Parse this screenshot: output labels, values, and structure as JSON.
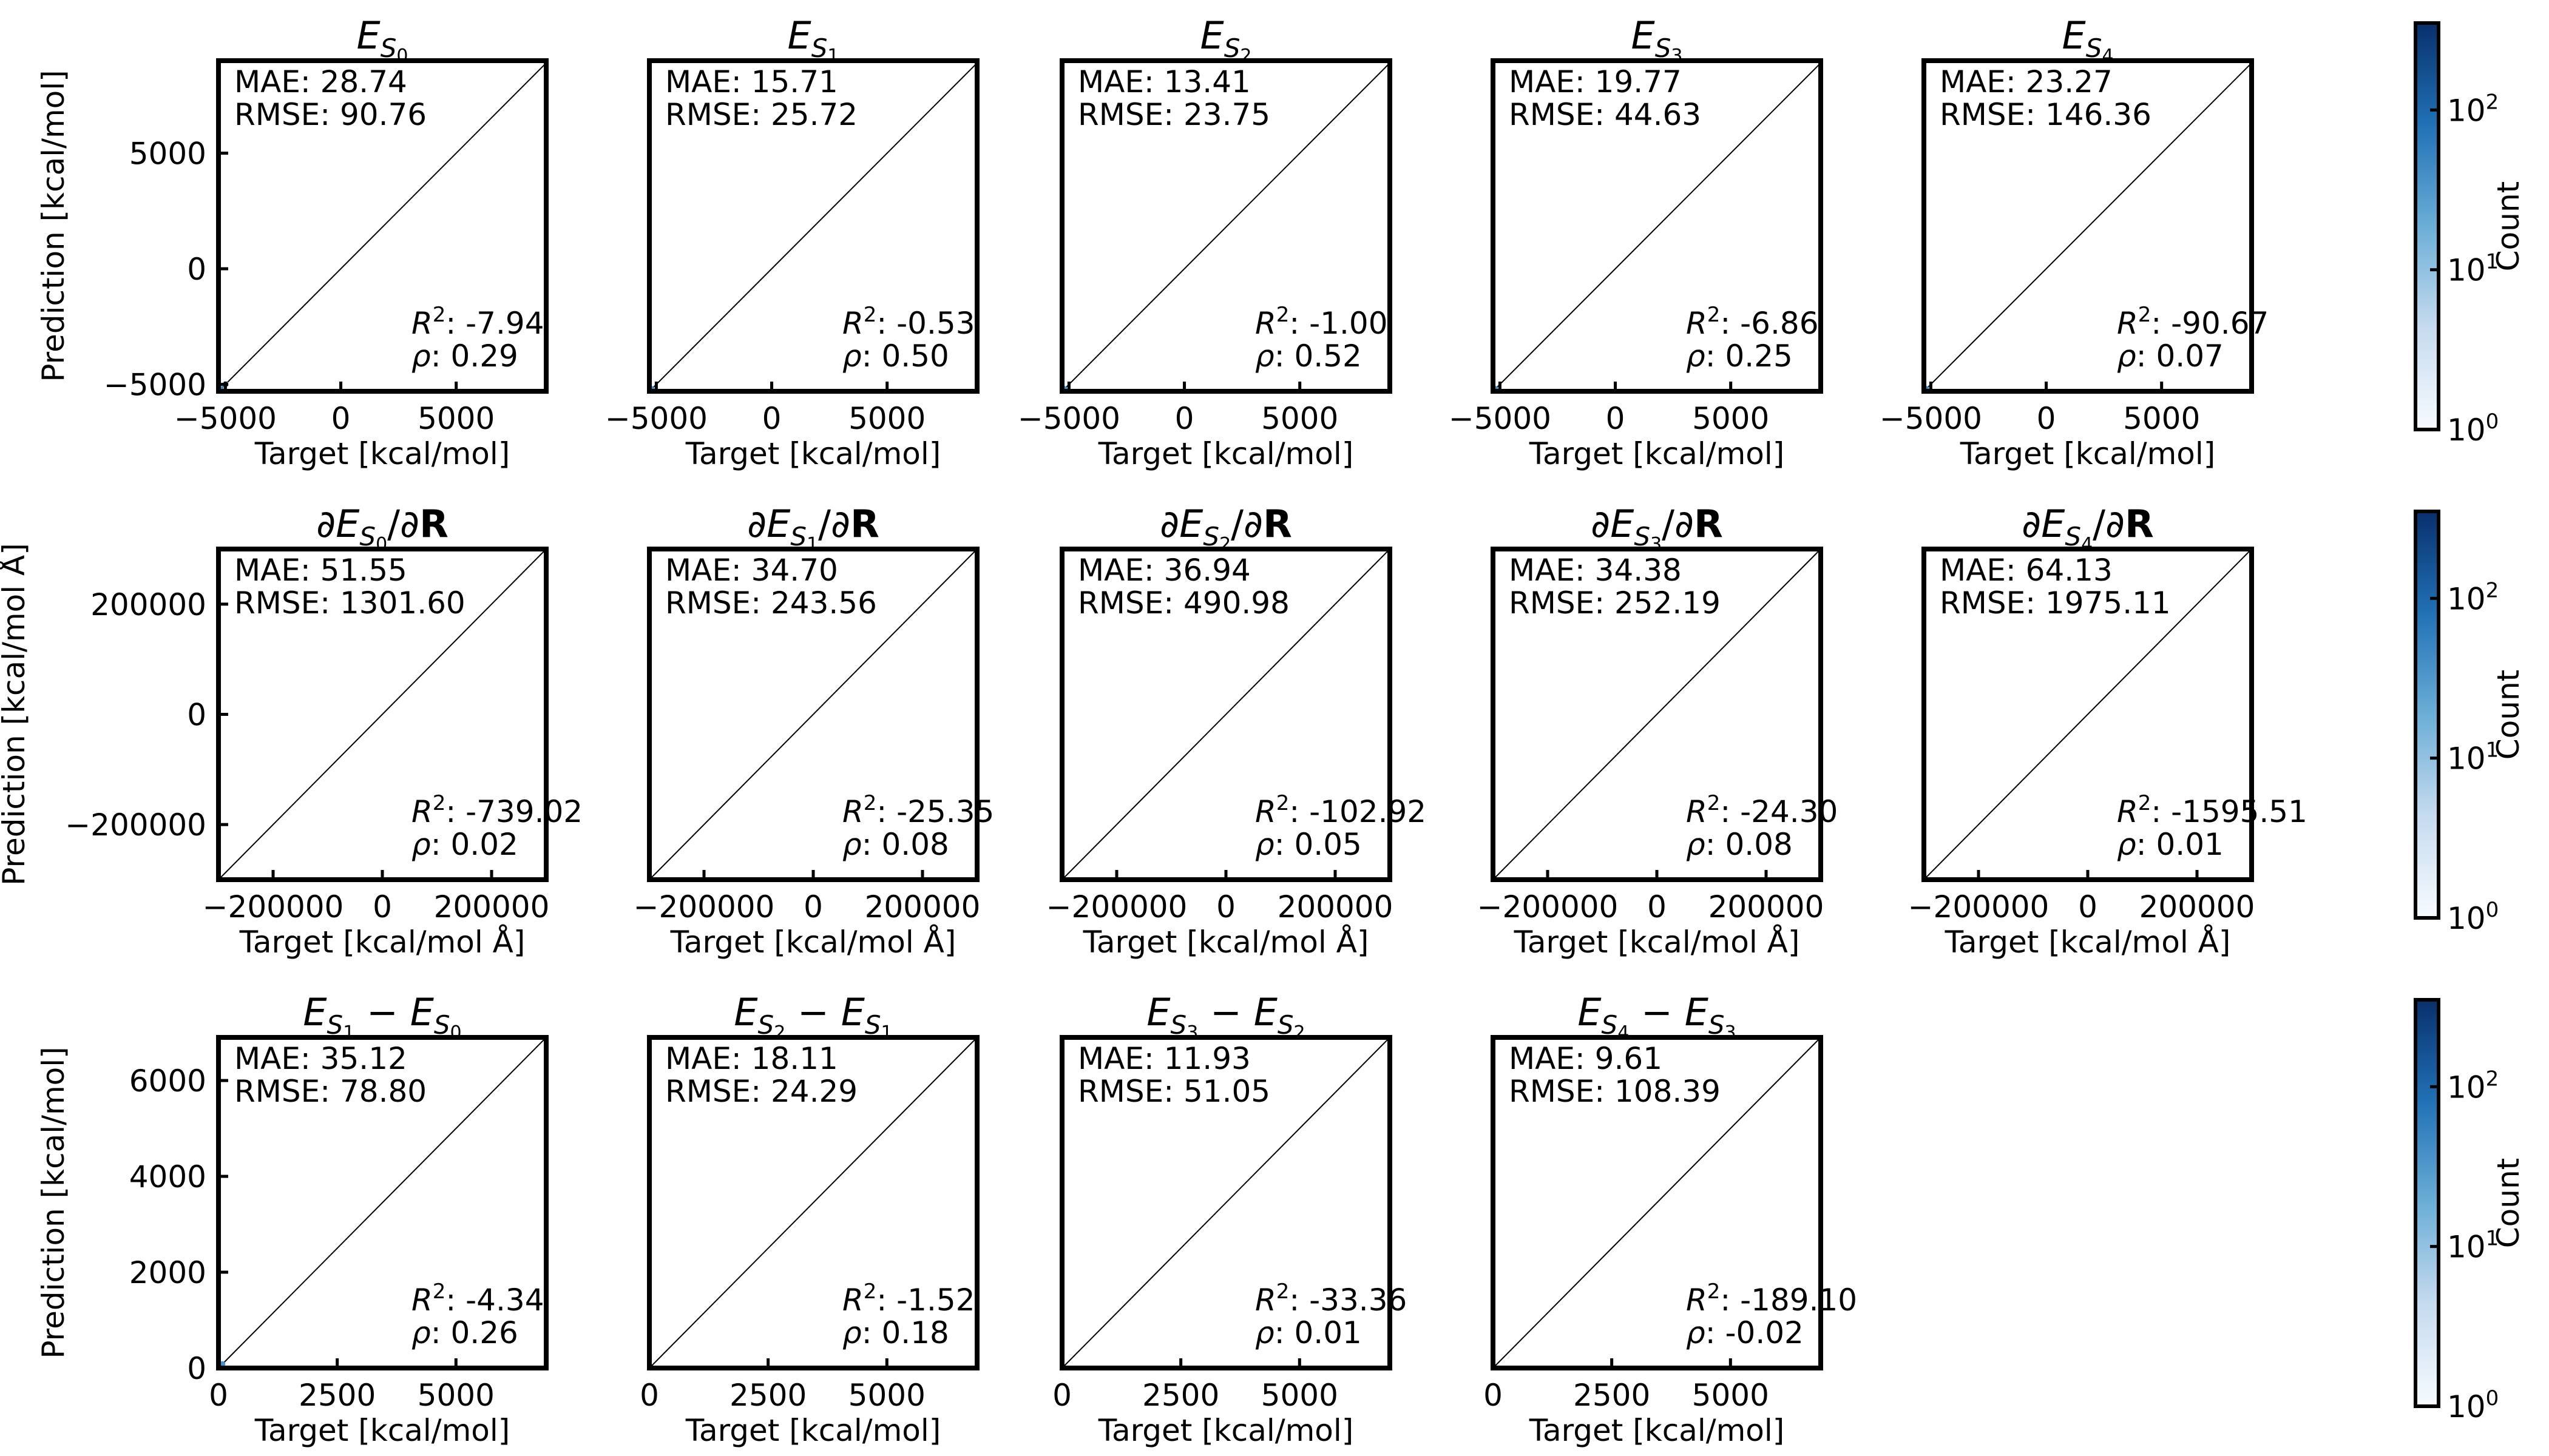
{
  "chart_data": [
    {
      "type": "scatter",
      "title": "E_S0",
      "title_parts": {
        "base": "E",
        "sub": "S",
        "subsub": "0"
      },
      "xlabel": "Target [kcal/mol]",
      "ylabel": "Prediction [kcal/mol]",
      "xlim": [
        -5300,
        8900
      ],
      "ylim": [
        -5300,
        9000
      ],
      "xticks": [
        -5000,
        0,
        5000
      ],
      "yticks": [
        -5000,
        0,
        5000
      ],
      "x": [
        -5200,
        -5000
      ],
      "y": [
        -5200,
        -5000
      ],
      "annotations": {
        "mae": "MAE: 28.74",
        "rmse": "RMSE: 90.76",
        "r2": "-7.94",
        "rho": "0.29"
      }
    },
    {
      "type": "scatter",
      "title": "E_S1",
      "title_parts": {
        "base": "E",
        "sub": "S",
        "subsub": "1"
      },
      "xlabel": "Target [kcal/mol]",
      "ylabel": "",
      "xlim": [
        -5300,
        8900
      ],
      "ylim": [
        -5300,
        9000
      ],
      "xticks": [
        -5000,
        0,
        5000
      ],
      "yticks": [],
      "x": [
        -5200
      ],
      "y": [
        -5200
      ],
      "annotations": {
        "mae": "MAE: 15.71",
        "rmse": "RMSE: 25.72",
        "r2": "-0.53",
        "rho": "0.50"
      }
    },
    {
      "type": "scatter",
      "title": "E_S2",
      "title_parts": {
        "base": "E",
        "sub": "S",
        "subsub": "2"
      },
      "xlabel": "Target [kcal/mol]",
      "ylabel": "",
      "xlim": [
        -5300,
        8900
      ],
      "ylim": [
        -5300,
        9000
      ],
      "xticks": [
        -5000,
        0,
        5000
      ],
      "yticks": [],
      "x": [
        -5200
      ],
      "y": [
        -5200
      ],
      "annotations": {
        "mae": "MAE: 13.41",
        "rmse": "RMSE: 23.75",
        "r2": "-1.00",
        "rho": "0.52"
      }
    },
    {
      "type": "scatter",
      "title": "E_S3",
      "title_parts": {
        "base": "E",
        "sub": "S",
        "subsub": "3"
      },
      "xlabel": "Target [kcal/mol]",
      "ylabel": "",
      "xlim": [
        -5300,
        8900
      ],
      "ylim": [
        -5300,
        9000
      ],
      "xticks": [
        -5000,
        0,
        5000
      ],
      "yticks": [],
      "x": [
        -5200
      ],
      "y": [
        -5200
      ],
      "annotations": {
        "mae": "MAE: 19.77",
        "rmse": "RMSE: 44.63",
        "r2": "-6.86",
        "rho": "0.25"
      }
    },
    {
      "type": "scatter",
      "title": "E_S4",
      "title_parts": {
        "base": "E",
        "sub": "S",
        "subsub": "4"
      },
      "xlabel": "Target [kcal/mol]",
      "ylabel": "",
      "xlim": [
        -5300,
        8900
      ],
      "ylim": [
        -5300,
        9000
      ],
      "xticks": [
        -5000,
        0,
        5000
      ],
      "yticks": [],
      "x": [
        -5200
      ],
      "y": [
        -5200
      ],
      "annotations": {
        "mae": "MAE: 23.27",
        "rmse": "RMSE: 146.36",
        "r2": "-90.67",
        "rho": "0.07"
      }
    },
    {
      "type": "scatter",
      "title": "∂E_S0/∂R",
      "title_parts": {
        "pre": "∂",
        "base": "E",
        "sub": "S",
        "subsub": "0",
        "post": "/∂",
        "bold": "R"
      },
      "xlabel": "Target [kcal/mol Å]",
      "ylabel": "Prediction [kcal/mol Å]",
      "xlim": [
        -300000,
        300000
      ],
      "ylim": [
        -300000,
        300000
      ],
      "xticks": [
        -200000,
        0,
        200000
      ],
      "yticks": [
        -200000,
        0,
        200000
      ],
      "x": [],
      "y": [],
      "annotations": {
        "mae": "MAE: 51.55",
        "rmse": "RMSE: 1301.60",
        "r2": "-739.02",
        "rho": "0.02"
      }
    },
    {
      "type": "scatter",
      "title": "∂E_S1/∂R",
      "title_parts": {
        "pre": "∂",
        "base": "E",
        "sub": "S",
        "subsub": "1",
        "post": "/∂",
        "bold": "R"
      },
      "xlabel": "Target [kcal/mol Å]",
      "ylabel": "",
      "xlim": [
        -300000,
        300000
      ],
      "ylim": [
        -300000,
        300000
      ],
      "xticks": [
        -200000,
        0,
        200000
      ],
      "yticks": [],
      "x": [],
      "y": [],
      "annotations": {
        "mae": "MAE: 34.70",
        "rmse": "RMSE: 243.56",
        "r2": "-25.35",
        "rho": "0.08"
      }
    },
    {
      "type": "scatter",
      "title": "∂E_S2/∂R",
      "title_parts": {
        "pre": "∂",
        "base": "E",
        "sub": "S",
        "subsub": "2",
        "post": "/∂",
        "bold": "R"
      },
      "xlabel": "Target [kcal/mol Å]",
      "ylabel": "",
      "xlim": [
        -300000,
        300000
      ],
      "ylim": [
        -300000,
        300000
      ],
      "xticks": [
        -200000,
        0,
        200000
      ],
      "yticks": [],
      "x": [],
      "y": [],
      "annotations": {
        "mae": "MAE: 36.94",
        "rmse": "RMSE: 490.98",
        "r2": "-102.92",
        "rho": "0.05"
      }
    },
    {
      "type": "scatter",
      "title": "∂E_S3/∂R",
      "title_parts": {
        "pre": "∂",
        "base": "E",
        "sub": "S",
        "subsub": "3",
        "post": "/∂",
        "bold": "R"
      },
      "xlabel": "Target [kcal/mol Å]",
      "ylabel": "",
      "xlim": [
        -300000,
        300000
      ],
      "ylim": [
        -300000,
        300000
      ],
      "xticks": [
        -200000,
        0,
        200000
      ],
      "yticks": [],
      "x": [],
      "y": [],
      "annotations": {
        "mae": "MAE: 34.38",
        "rmse": "RMSE: 252.19",
        "r2": "-24.30",
        "rho": "0.08"
      }
    },
    {
      "type": "scatter",
      "title": "∂E_S4/∂R",
      "title_parts": {
        "pre": "∂",
        "base": "E",
        "sub": "S",
        "subsub": "4",
        "post": "/∂",
        "bold": "R"
      },
      "xlabel": "Target [kcal/mol Å]",
      "ylabel": "",
      "xlim": [
        -300000,
        300000
      ],
      "ylim": [
        -300000,
        300000
      ],
      "xticks": [
        -200000,
        0,
        200000
      ],
      "yticks": [],
      "x": [],
      "y": [],
      "annotations": {
        "mae": "MAE: 64.13",
        "rmse": "RMSE: 1975.11",
        "r2": "-1595.51",
        "rho": "0.01"
      }
    },
    {
      "type": "scatter",
      "title": "E_S1 − E_S0",
      "title_parts": {
        "base": "E",
        "sub": "S",
        "subsub": "1",
        "minus": " − ",
        "base2": "E",
        "sub2": "S",
        "subsub2": "0"
      },
      "xlabel": "Target [kcal/mol]",
      "ylabel": "Prediction [kcal/mol]",
      "xlim": [
        0,
        6900
      ],
      "ylim": [
        0,
        6900
      ],
      "xticks": [
        0,
        2500,
        5000
      ],
      "yticks": [
        0,
        2000,
        4000,
        6000
      ],
      "x": [
        50,
        80
      ],
      "y": [
        50,
        80
      ],
      "annotations": {
        "mae": "MAE: 35.12",
        "rmse": "RMSE: 78.80",
        "r2": "-4.34",
        "rho": "0.26"
      }
    },
    {
      "type": "scatter",
      "title": "E_S2 − E_S1",
      "title_parts": {
        "base": "E",
        "sub": "S",
        "subsub": "2",
        "minus": " − ",
        "base2": "E",
        "sub2": "S",
        "subsub2": "1"
      },
      "xlabel": "Target [kcal/mol]",
      "ylabel": "",
      "xlim": [
        0,
        6900
      ],
      "ylim": [
        0,
        6900
      ],
      "xticks": [
        0,
        2500,
        5000
      ],
      "yticks": [],
      "x": [],
      "y": [],
      "annotations": {
        "mae": "MAE: 18.11",
        "rmse": "RMSE: 24.29",
        "r2": "-1.52",
        "rho": "0.18"
      }
    },
    {
      "type": "scatter",
      "title": "E_S3 − E_S2",
      "title_parts": {
        "base": "E",
        "sub": "S",
        "subsub": "3",
        "minus": " − ",
        "base2": "E",
        "sub2": "S",
        "subsub2": "2"
      },
      "xlabel": "Target [kcal/mol]",
      "ylabel": "",
      "xlim": [
        0,
        6900
      ],
      "ylim": [
        0,
        6900
      ],
      "xticks": [
        0,
        2500,
        5000
      ],
      "yticks": [],
      "x": [],
      "y": [],
      "annotations": {
        "mae": "MAE: 11.93",
        "rmse": "RMSE: 51.05",
        "r2": "-33.36",
        "rho": "0.01"
      }
    },
    {
      "type": "scatter",
      "title": "E_S4 − E_S3",
      "title_parts": {
        "base": "E",
        "sub": "S",
        "subsub": "4",
        "minus": " − ",
        "base2": "E",
        "sub2": "S",
        "subsub2": "3"
      },
      "xlabel": "Target [kcal/mol]",
      "ylabel": "",
      "xlim": [
        0,
        6900
      ],
      "ylim": [
        0,
        6900
      ],
      "xticks": [
        0,
        2500,
        5000
      ],
      "yticks": [],
      "x": [],
      "y": [],
      "annotations": {
        "mae": "MAE: 9.61",
        "rmse": "RMSE: 108.39",
        "r2": "-189.10",
        "rho": "-0.02"
      }
    }
  ],
  "colorbar": {
    "label": "Count",
    "scale": "log",
    "range": [
      1,
      350
    ],
    "ticks": [
      {
        "base": "10",
        "exp": "0"
      },
      {
        "base": "10",
        "exp": "1"
      },
      {
        "base": "10",
        "exp": "2"
      }
    ],
    "colors": [
      "#f7fbff",
      "#c6dbef",
      "#6baed6",
      "#2171b5",
      "#08306b"
    ]
  },
  "labels": {
    "r2_prefix": "R",
    "r2_exp": "2",
    "rho_prefix": "ρ"
  }
}
